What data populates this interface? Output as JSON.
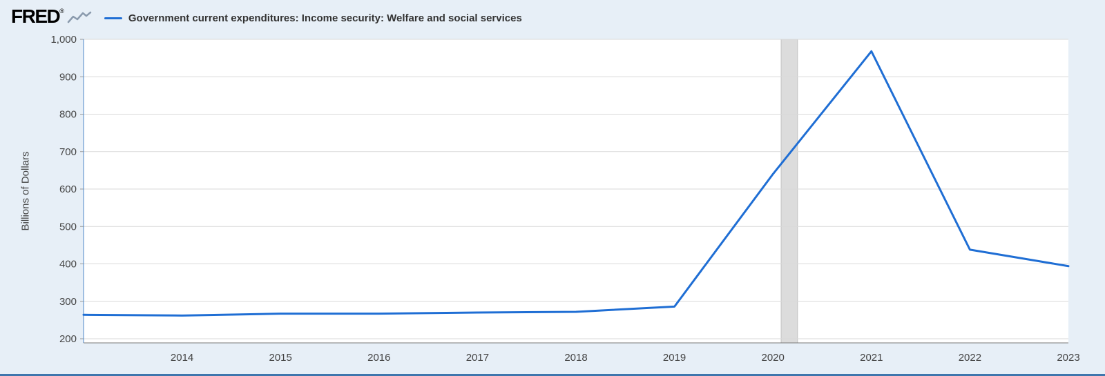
{
  "header": {
    "logo": "FRED",
    "registered": "®",
    "legend_label": "Government current expenditures: Income security: Welfare and social services"
  },
  "colors": {
    "background": "#e7eff7",
    "plot_background": "#ffffff",
    "line": "#1f6ed4",
    "gridline": "#d9d9d9",
    "recession": "#dcdcdc",
    "recession_edge": "#c2c2c2",
    "axis_text": "#444444",
    "y_axis_line": "#4e87c7",
    "x_axis_line": "#777777",
    "tick_mark": "#999999",
    "bottom_border": "#3f76ad",
    "logo_squiggle": "#8a9aad"
  },
  "chart_data": {
    "type": "line",
    "title": "Government current expenditures: Income security: Welfare and social services",
    "xlabel": "",
    "ylabel": "Billions of Dollars",
    "x": [
      2013,
      2014,
      2015,
      2016,
      2017,
      2018,
      2019,
      2020,
      2021,
      2022,
      2023
    ],
    "values": [
      264,
      262,
      267,
      267,
      270,
      272,
      286,
      640,
      968,
      438,
      394
    ],
    "xlim": [
      2013,
      2023
    ],
    "ylim": [
      200,
      1000
    ],
    "y_ticks": [
      200,
      300,
      400,
      500,
      600,
      700,
      800,
      900,
      1000
    ],
    "y_tick_labels": [
      "200",
      "300",
      "400",
      "500",
      "600",
      "700",
      "800",
      "900",
      "1,000"
    ],
    "x_ticks": [
      2014,
      2015,
      2016,
      2017,
      2018,
      2019,
      2020,
      2021,
      2022,
      2023
    ],
    "x_tick_labels": [
      "2014",
      "2015",
      "2016",
      "2017",
      "2018",
      "2019",
      "2020",
      "2021",
      "2022",
      "2023"
    ],
    "grid": true,
    "legend_position": "top",
    "recession_bands": [
      {
        "start": 2020.083,
        "end": 2020.25
      }
    ]
  }
}
